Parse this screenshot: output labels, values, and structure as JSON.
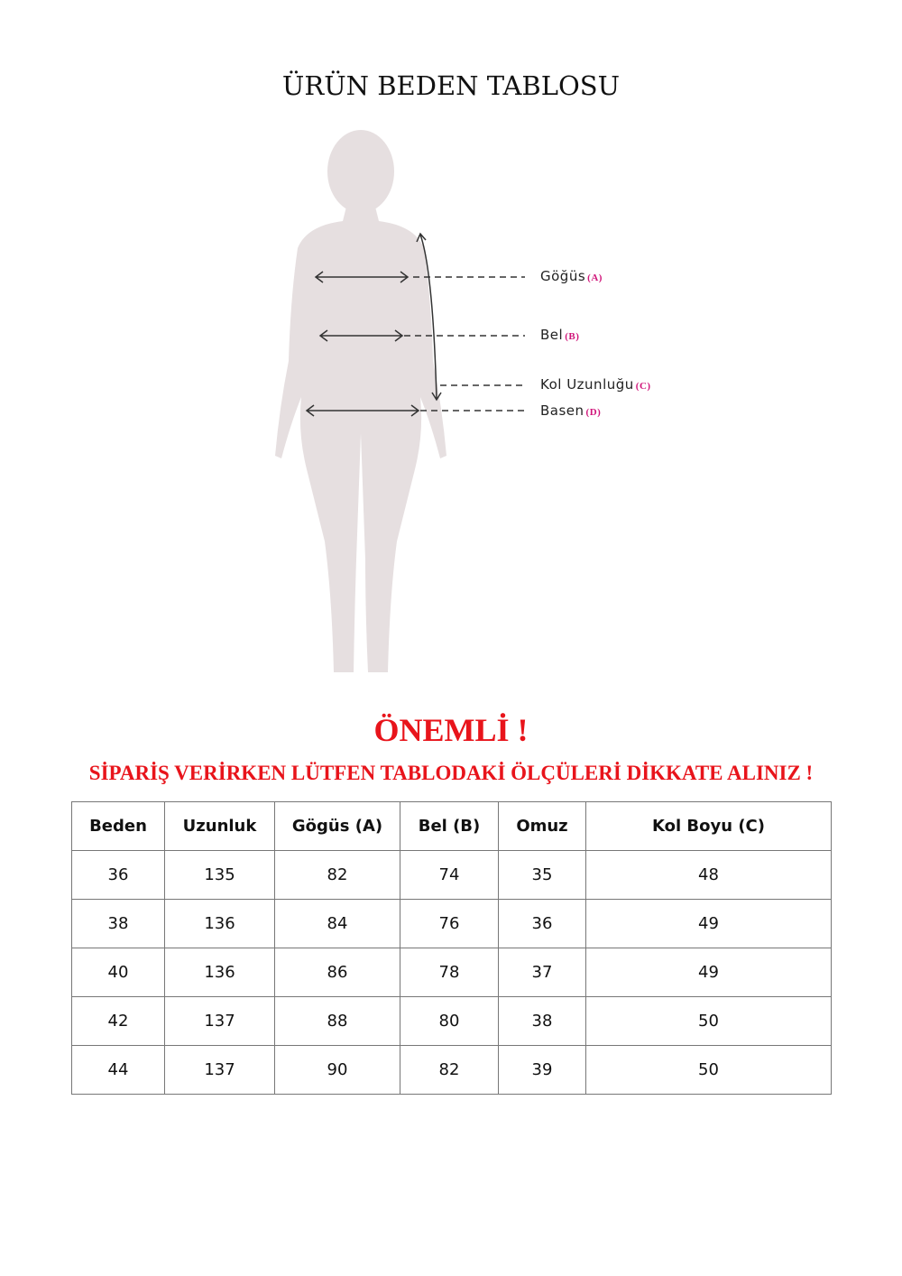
{
  "title": "ÜRÜN BEDEN TABLOSU",
  "figure": {
    "labels": [
      {
        "text": "Göğüs",
        "code": "(A)"
      },
      {
        "text": "Bel",
        "code": "(B)"
      },
      {
        "text": "Kol Uzunluğu",
        "code": "(C)"
      },
      {
        "text": "Basen",
        "code": "(D)"
      }
    ],
    "silhouette_color": "#e6dfe0"
  },
  "notice": {
    "heading": "ÖNEMLİ !",
    "text": "SİPARİŞ VERİRKEN LÜTFEN TABLODAKİ ÖLÇÜLERİ DİKKATE ALINIZ !",
    "color": "#e8141b"
  },
  "table": {
    "headers": [
      "Beden",
      "Uzunluk",
      "Gögüs (A)",
      "Bel (B)",
      "Omuz",
      "Kol Boyu (C)"
    ],
    "rows": [
      [
        "36",
        "135",
        "82",
        "74",
        "35",
        "48"
      ],
      [
        "38",
        "136",
        "84",
        "76",
        "36",
        "49"
      ],
      [
        "40",
        "136",
        "86",
        "78",
        "37",
        "49"
      ],
      [
        "42",
        "137",
        "88",
        "80",
        "38",
        "50"
      ],
      [
        "44",
        "137",
        "90",
        "82",
        "39",
        "50"
      ]
    ]
  }
}
